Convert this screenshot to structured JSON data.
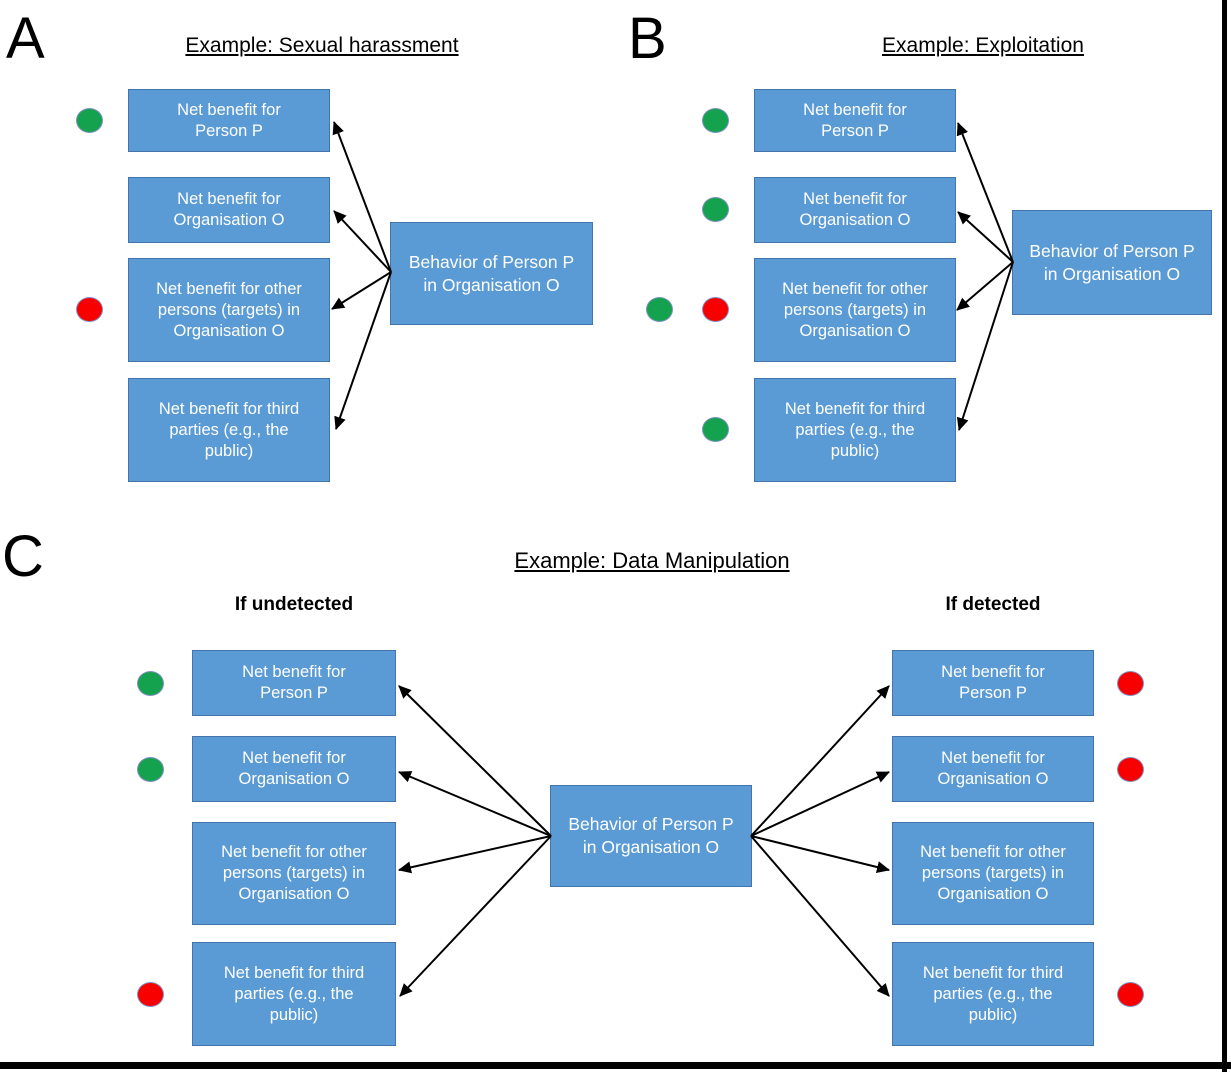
{
  "colors": {
    "box_fill": "#5B9BD5",
    "box_border": "#4474AC",
    "positive_dot": "#14A24E",
    "negative_dot": "#F80000",
    "arrow": "#000000"
  },
  "panels": {
    "a": {
      "label": "A",
      "title": "Example: Sexual harassment",
      "behavior_box": "Behavior of Person P\nin Organisation O",
      "boxes": [
        {
          "text": "Net benefit for\nPerson P",
          "indicators": [
            "green"
          ]
        },
        {
          "text": "Net benefit for\nOrganisation O",
          "indicators": []
        },
        {
          "text": "Net benefit for other\npersons (targets) in\nOrganisation O",
          "indicators": [
            "red"
          ]
        },
        {
          "text": "Net benefit for third\nparties (e.g., the\npublic)",
          "indicators": []
        }
      ]
    },
    "b": {
      "label": "B",
      "title": "Example: Exploitation",
      "behavior_box": "Behavior of Person P\nin Organisation O",
      "boxes": [
        {
          "text": "Net benefit for\nPerson P",
          "indicators": [
            "green"
          ]
        },
        {
          "text": "Net benefit for\nOrganisation O",
          "indicators": [
            "green"
          ]
        },
        {
          "text": "Net benefit for other\npersons (targets) in\nOrganisation O",
          "indicators": [
            "green",
            "red"
          ]
        },
        {
          "text": "Net benefit for third\nparties (e.g., the\npublic)",
          "indicators": [
            "green"
          ]
        }
      ]
    },
    "c": {
      "label": "C",
      "title": "Example: Data Manipulation",
      "behavior_box": "Behavior of Person P\nin Organisation O",
      "left": {
        "header": "If undetected",
        "boxes": [
          {
            "text": "Net benefit for\nPerson P",
            "indicators": [
              "green"
            ]
          },
          {
            "text": "Net benefit for\nOrganisation O",
            "indicators": [
              "green"
            ]
          },
          {
            "text": "Net benefit for other\npersons (targets) in\nOrganisation O",
            "indicators": []
          },
          {
            "text": "Net benefit for third\nparties (e.g., the\npublic)",
            "indicators": [
              "red"
            ]
          }
        ]
      },
      "right": {
        "header": "If detected",
        "boxes": [
          {
            "text": "Net benefit for\nPerson P",
            "indicators": [
              "red"
            ]
          },
          {
            "text": "Net benefit for\nOrganisation O",
            "indicators": [
              "red"
            ]
          },
          {
            "text": "Net benefit for other\npersons (targets) in\nOrganisation O",
            "indicators": []
          },
          {
            "text": "Net benefit for third\nparties (e.g., the\npublic)",
            "indicators": [
              "red"
            ]
          }
        ]
      }
    }
  }
}
